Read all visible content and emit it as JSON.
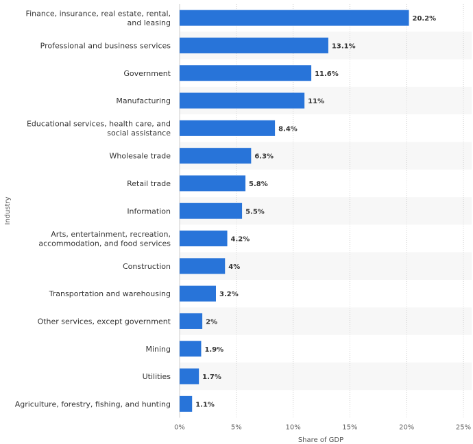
{
  "chart_data": {
    "type": "bar",
    "orientation": "horizontal",
    "title": "",
    "xlabel": "Share of GDP",
    "ylabel": "Industry",
    "xlim": [
      0,
      25
    ],
    "ticks": [
      "0%",
      "5%",
      "10%",
      "15%",
      "20%",
      "25%"
    ],
    "tick_values": [
      0,
      5,
      10,
      15,
      20,
      25
    ],
    "bar_color": "#2874d9",
    "band_color": "#f7f7f7",
    "categories": [
      [
        "Finance, insurance, real estate, rental,",
        "and leasing"
      ],
      [
        "Professional and business services"
      ],
      [
        "Government"
      ],
      [
        "Manufacturing"
      ],
      [
        "Educational services, health care, and",
        "social assistance"
      ],
      [
        "Wholesale trade"
      ],
      [
        "Retail trade"
      ],
      [
        "Information"
      ],
      [
        "Arts, entertainment, recreation,",
        "accommodation, and food services"
      ],
      [
        "Construction"
      ],
      [
        "Transportation and warehousing"
      ],
      [
        "Other services, except government"
      ],
      [
        "Mining"
      ],
      [
        "Utilities"
      ],
      [
        "Agriculture, forestry, fishing, and hunting"
      ]
    ],
    "values": [
      20.2,
      13.1,
      11.6,
      11,
      8.4,
      6.3,
      5.8,
      5.5,
      4.2,
      4,
      3.2,
      2,
      1.9,
      1.7,
      1.1
    ],
    "value_labels": [
      "20.2%",
      "13.1%",
      "11.6%",
      "11%",
      "8.4%",
      "6.3%",
      "5.8%",
      "5.5%",
      "4.2%",
      "4%",
      "3.2%",
      "2%",
      "1.9%",
      "1.7%",
      "1.1%"
    ]
  }
}
